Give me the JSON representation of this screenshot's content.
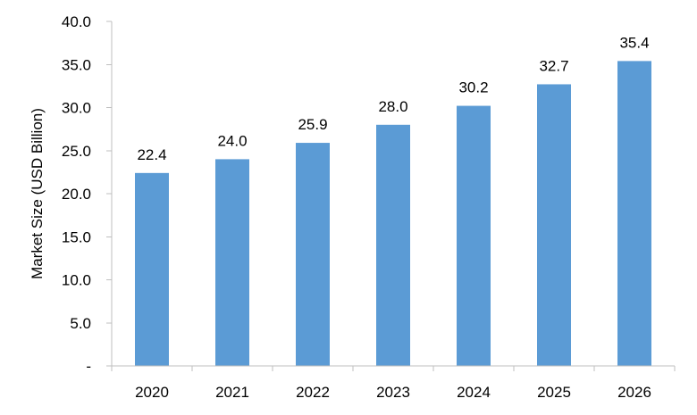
{
  "chart_data": {
    "type": "bar",
    "title": "",
    "xlabel": "",
    "ylabel": "Market Size (USD Billion)",
    "categories": [
      "2020",
      "2021",
      "2022",
      "2023",
      "2024",
      "2025",
      "2026"
    ],
    "values": [
      22.4,
      24.0,
      25.9,
      28.0,
      30.2,
      32.7,
      35.4
    ],
    "value_labels": [
      "22.4",
      "24.0",
      "25.9",
      "28.0",
      "30.2",
      "32.7",
      "35.4"
    ],
    "ylim": [
      0,
      40
    ],
    "yticks": [
      0,
      5,
      10,
      15,
      20,
      25,
      30,
      35,
      40
    ],
    "ytick_labels": [
      "-",
      "5.0",
      "10.0",
      "15.0",
      "20.0",
      "25.0",
      "30.0",
      "35.0",
      "40.0"
    ],
    "grid": false,
    "legend": "none",
    "bar_color": "#5b9bd5",
    "axis_color": "#bfbfbf"
  }
}
